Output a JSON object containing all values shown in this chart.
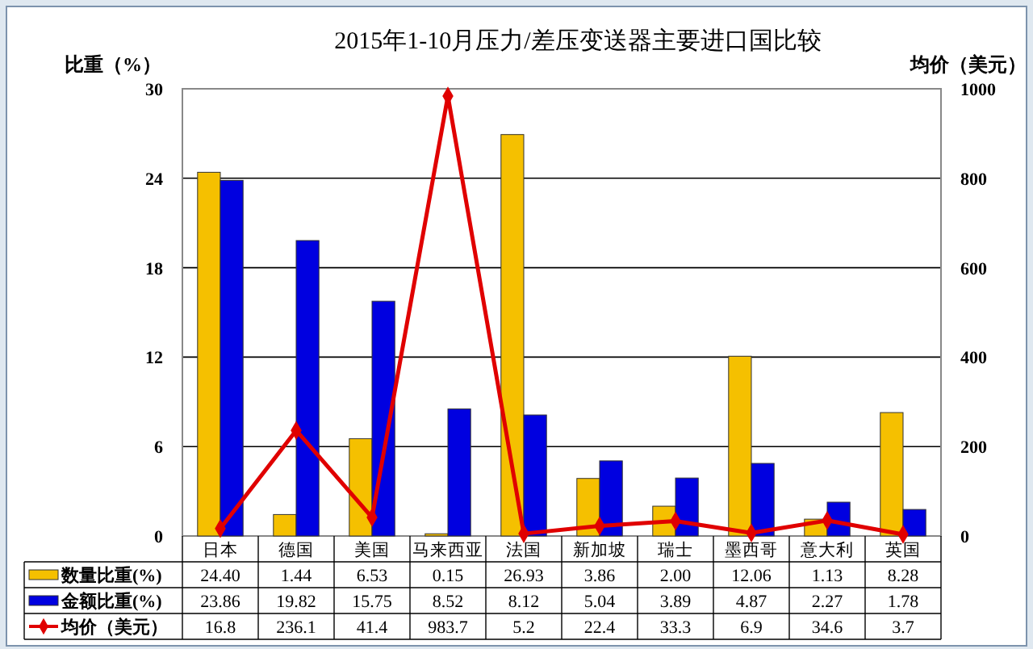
{
  "chart_data": {
    "type": "bar",
    "title": "2015年1-10月压力/差压变送器主要进口国比较",
    "ylabel": "比重（%）",
    "y2label": "均价（美元）",
    "categories": [
      "日本",
      "德国",
      "美国",
      "马来西亚",
      "法国",
      "新加坡",
      "瑞士",
      "墨西哥",
      "意大利",
      "英国"
    ],
    "series": [
      {
        "name": "数量比重(%)",
        "color": "#f5c000",
        "values": [
          24.4,
          1.44,
          6.53,
          0.15,
          26.93,
          3.86,
          2.0,
          12.06,
          1.13,
          8.28
        ],
        "value_labels": [
          "24.40",
          "1.44",
          "6.53",
          "0.15",
          "26.93",
          "3.86",
          "2.00",
          "12.06",
          "1.13",
          "8.28"
        ]
      },
      {
        "name": "金额比重(%)",
        "color": "#0000e0",
        "values": [
          23.86,
          19.82,
          15.75,
          8.52,
          8.12,
          5.04,
          3.89,
          4.87,
          2.27,
          1.78
        ],
        "value_labels": [
          "23.86",
          "19.82",
          "15.75",
          "8.52",
          "8.12",
          "5.04",
          "3.89",
          "4.87",
          "2.27",
          "1.78"
        ]
      },
      {
        "name": "均价（美元）",
        "type": "line",
        "axis": "y2",
        "color": "#e00000",
        "marker": "diamond",
        "values": [
          16.8,
          236.1,
          41.4,
          983.7,
          5.2,
          22.4,
          33.3,
          6.9,
          34.6,
          3.7
        ],
        "value_labels": [
          "16.8",
          "236.1",
          "41.4",
          "983.7",
          "5.2",
          "22.4",
          "33.3",
          "6.9",
          "34.6",
          "3.7"
        ]
      }
    ],
    "ylim": [
      0,
      30
    ],
    "yticks": [
      0,
      6,
      12,
      18,
      24,
      30
    ],
    "y2lim": [
      0,
      1000
    ],
    "y2ticks": [
      0,
      200,
      400,
      600,
      800,
      1000
    ],
    "grid": "y",
    "legend": "bottom"
  }
}
